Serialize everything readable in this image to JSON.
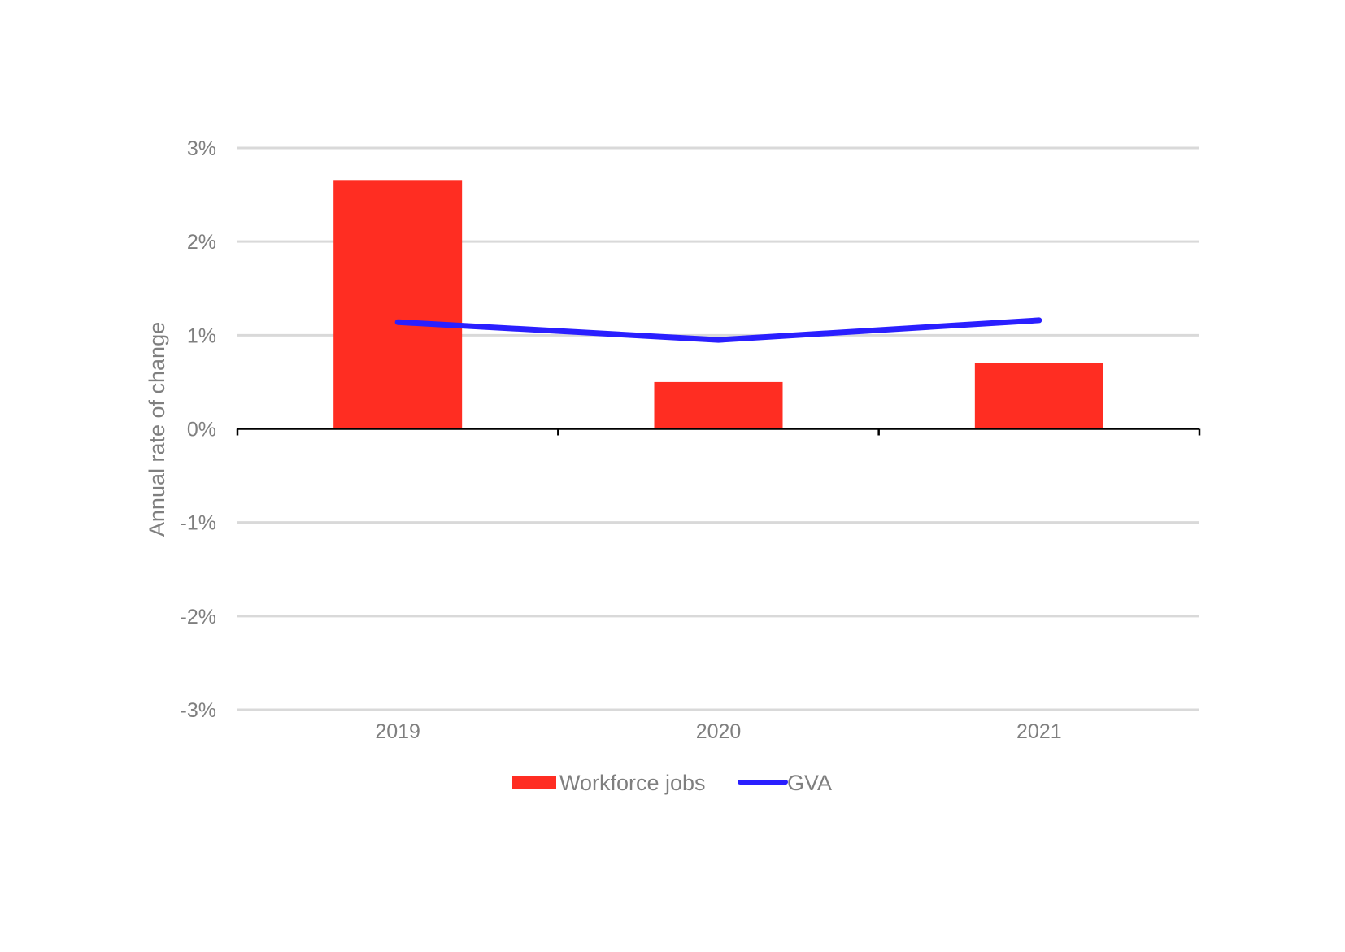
{
  "chart_data": {
    "type": "bar",
    "categories": [
      "2019",
      "2020",
      "2021"
    ],
    "series": [
      {
        "name": "Workforce jobs",
        "type": "bar",
        "values": [
          2.65,
          0.5,
          0.7
        ],
        "color": "#ff2d22"
      },
      {
        "name": "GVA",
        "type": "line",
        "values": [
          1.14,
          0.95,
          1.16
        ],
        "color": "#2a1fff"
      }
    ],
    "ylabel": "Annual rate of change",
    "xlabel": "",
    "ylim": [
      -3,
      3
    ],
    "yticks": [
      3,
      2,
      1,
      0,
      -1,
      -2,
      -3
    ],
    "ytick_labels": [
      "3%",
      "2%",
      "1%",
      "0%",
      "-1%",
      "-2%",
      "-3%"
    ],
    "grid": true,
    "legend": "bottom-center",
    "colors": {
      "gridline": "#d9d9d9",
      "axis": "#000000",
      "text": "#7f7f7f"
    }
  }
}
